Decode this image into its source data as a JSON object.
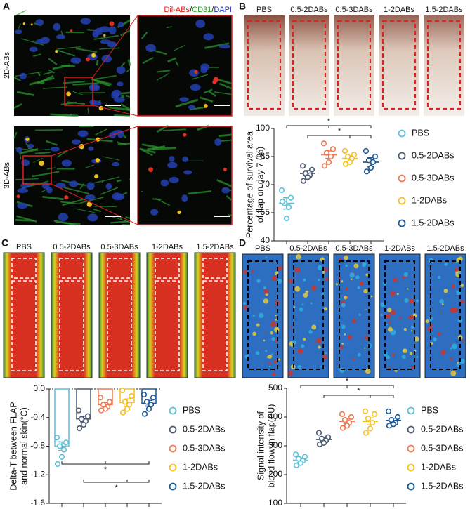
{
  "panel_a": {
    "label": "A",
    "stain": [
      "Dil-ABs",
      "/",
      "CD31",
      "/",
      "DAPI"
    ],
    "rows": [
      "2D-ABs",
      "3D-ABs"
    ]
  },
  "panel_b": {
    "label": "B",
    "images": [
      "PBS",
      "0.5-2DABs",
      "0.5-3DABs",
      "1-2DABs",
      "1.5-2DABs"
    ]
  },
  "panel_c": {
    "label": "C",
    "images": [
      "PBS",
      "0.5-2DABs",
      "0.5-3DABs",
      "1-2DABs",
      "1.5-2DABs"
    ]
  },
  "panel_d": {
    "label": "D",
    "images": [
      "PBS",
      "0.5-2DABs",
      "0.5-3DABs",
      "1-2DABs",
      "1.5-2DABs"
    ]
  },
  "chart_data": [
    {
      "type": "dot",
      "ylabel": [
        "Percentage of survival area",
        "of flap on day 7 (%)"
      ],
      "ylim": [
        40,
        100
      ],
      "yticks": [
        40,
        55,
        70,
        85,
        100
      ],
      "annotations": [
        "*",
        "*"
      ],
      "series": [
        {
          "name": "PBS",
          "color": "#5bc0d8",
          "value": 60,
          "error": 3,
          "points": [
            67,
            63,
            60,
            58,
            52,
            61
          ]
        },
        {
          "name": "0.5-2DABs",
          "color": "#4a5a70",
          "value": 76,
          "error": 1.5,
          "points": [
            80,
            78,
            76,
            75,
            74,
            72
          ]
        },
        {
          "name": "0.5-3DABs",
          "color": "#f07850",
          "value": 86,
          "error": 2,
          "points": [
            92,
            89,
            87,
            85,
            82,
            80
          ]
        },
        {
          "name": "1-2DABs",
          "color": "#f5c020",
          "value": 84,
          "error": 1.5,
          "points": [
            88,
            86,
            85,
            84,
            82,
            81
          ]
        },
        {
          "name": "1.5-2DABs",
          "color": "#1a5a9a",
          "value": 82,
          "error": 2.5,
          "points": [
            88,
            85,
            83,
            82,
            79,
            77
          ]
        }
      ]
    },
    {
      "type": "bar",
      "ylabel": [
        "Delta-T between FLAP",
        "and normal skin(°C)"
      ],
      "ylim": [
        -1.6,
        0
      ],
      "yticks": [
        {
          "value": 0,
          "label": "0.0"
        },
        -0.4,
        -0.8,
        -1.2,
        -1.6
      ],
      "zero_line": true,
      "annotations": [
        "*",
        "*"
      ],
      "series": [
        {
          "name": "PBS",
          "color": "#5bc0d8",
          "value": -0.8,
          "error": 0.06,
          "points": [
            -0.68,
            -0.75,
            -0.8,
            -0.85,
            -0.95,
            -1.05
          ]
        },
        {
          "name": "0.5-2DABs",
          "color": "#4a5a70",
          "value": -0.42,
          "error": 0.04,
          "points": [
            -0.3,
            -0.38,
            -0.42,
            -0.45,
            -0.5,
            -0.55
          ]
        },
        {
          "name": "0.5-3DABs",
          "color": "#f07850",
          "value": -0.22,
          "error": 0.03,
          "points": [
            -0.12,
            -0.18,
            -0.22,
            -0.25,
            -0.28,
            -0.3
          ]
        },
        {
          "name": "1-2DABs",
          "color": "#f5c020",
          "value": -0.19,
          "error": 0.05,
          "points": [
            -0.02,
            -0.1,
            -0.18,
            -0.22,
            -0.28,
            -0.33
          ]
        },
        {
          "name": "1.5-2DABs",
          "color": "#1a5a9a",
          "value": -0.2,
          "error": 0.04,
          "points": [
            -0.08,
            -0.12,
            -0.18,
            -0.22,
            -0.28,
            -0.35
          ]
        }
      ]
    },
    {
      "type": "dot",
      "ylabel": [
        "Signal intensity of",
        "blood flow in flap(PU)"
      ],
      "ylim": [
        100,
        500
      ],
      "yticks": [
        100,
        200,
        300,
        400,
        500
      ],
      "annotations": [
        "*",
        "*"
      ],
      "series": [
        {
          "name": "PBS",
          "color": "#5bc0d8",
          "value": 250,
          "error": 8,
          "points": [
            270,
            262,
            255,
            248,
            240,
            232
          ]
        },
        {
          "name": "0.5-2DABs",
          "color": "#4a5a70",
          "value": 322,
          "error": 7,
          "points": [
            345,
            330,
            325,
            318,
            310,
            305
          ]
        },
        {
          "name": "0.5-3DABs",
          "color": "#f07850",
          "value": 385,
          "error": 8,
          "points": [
            410,
            400,
            390,
            380,
            370,
            362
          ]
        },
        {
          "name": "1-2DABs",
          "color": "#f5c020",
          "value": 385,
          "error": 12,
          "points": [
            420,
            410,
            395,
            380,
            360,
            345
          ]
        },
        {
          "name": "1.5-2DABs",
          "color": "#1a5a9a",
          "value": 388,
          "error": 8,
          "points": [
            420,
            400,
            390,
            380,
            375,
            370
          ]
        }
      ]
    }
  ]
}
